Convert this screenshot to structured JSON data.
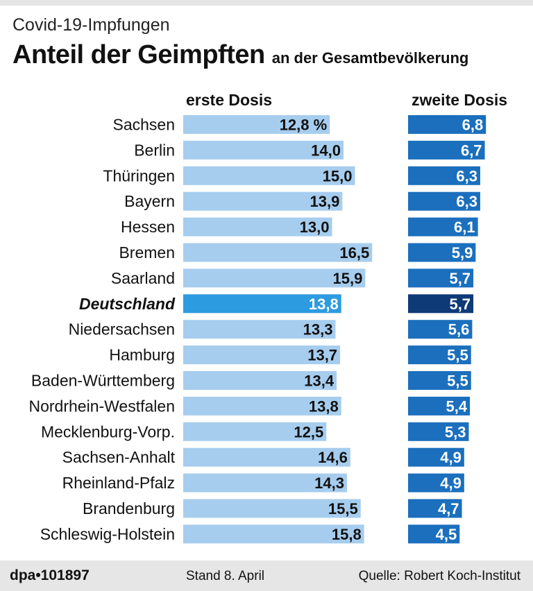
{
  "header": {
    "subtitle": "Covid-19-Impfungen",
    "title": "Anteil der Geimpften",
    "title_suffix": "an der Gesamtbevölkerung"
  },
  "footer": {
    "id": "dpa•101897",
    "date": "Stand 8. April",
    "source": "Quelle: Robert Koch-Institut"
  },
  "colors": {
    "first_dose": "#a6cdee",
    "first_dose_highlight": "#2d9be0",
    "second_dose": "#1b6fbd",
    "second_dose_highlight": "#0f3a78"
  },
  "chart_data": {
    "type": "bar",
    "title": "Anteil der Geimpften an der Gesamtbevölkerung",
    "unit_label": "%",
    "categories": [
      "Sachsen",
      "Berlin",
      "Thüringen",
      "Bayern",
      "Hessen",
      "Bremen",
      "Saarland",
      "Deutschland",
      "Niedersachsen",
      "Hamburg",
      "Baden-Württemberg",
      "Nordrhein-Westfalen",
      "Mecklenburg-Vorp.",
      "Sachsen-Anhalt",
      "Rheinland-Pfalz",
      "Brandenburg",
      "Schleswig-Holstein"
    ],
    "highlight": "Deutschland",
    "series": [
      {
        "name": "erste Dosis",
        "values": [
          12.8,
          14.0,
          15.0,
          13.9,
          13.0,
          16.5,
          15.9,
          13.8,
          13.3,
          13.7,
          13.4,
          13.8,
          12.5,
          14.6,
          14.3,
          15.5,
          15.8
        ],
        "labels": [
          "12,8 %",
          "14,0",
          "15,0",
          "13,9",
          "13,0",
          "16,5",
          "15,9",
          "13,8",
          "13,3",
          "13,7",
          "13,4",
          "13,8",
          "12,5",
          "14,6",
          "14,3",
          "15,5",
          "15,8"
        ]
      },
      {
        "name": "zweite Dosis",
        "values": [
          6.8,
          6.7,
          6.3,
          6.3,
          6.1,
          5.9,
          5.7,
          5.7,
          5.6,
          5.5,
          5.5,
          5.4,
          5.3,
          4.9,
          4.9,
          4.7,
          4.5
        ],
        "labels": [
          "6,8",
          "6,7",
          "6,3",
          "6,3",
          "6,1",
          "5,9",
          "5,7",
          "5,7",
          "5,6",
          "5,5",
          "5,5",
          "5,4",
          "5,3",
          "4,9",
          "4,9",
          "4,7",
          "4,5"
        ]
      }
    ]
  }
}
